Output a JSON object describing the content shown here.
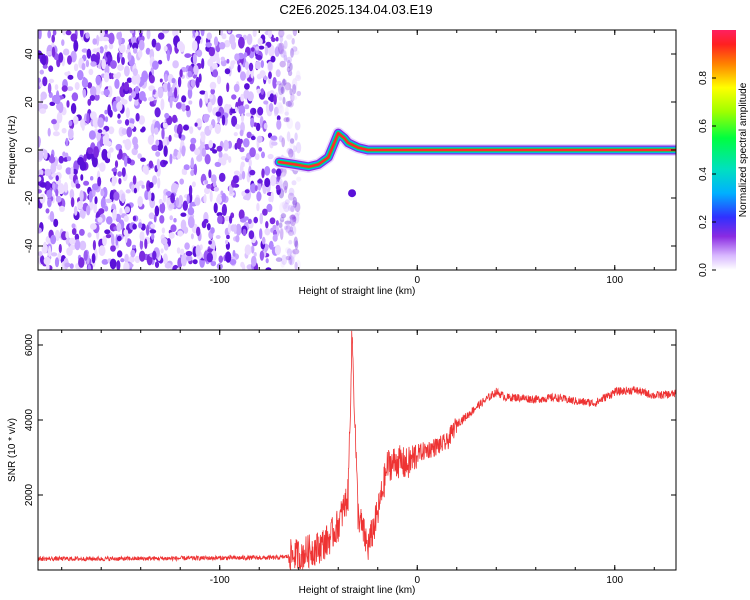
{
  "title": "C2E6.2025.134.04.03.E19",
  "chart_data": [
    {
      "type": "heatmap",
      "xlabel": "Height of straight line (km)",
      "ylabel": "Frequency (Hz)",
      "xlim": [
        -192,
        131
      ],
      "ylim": [
        -50,
        50
      ],
      "x_ticks": [
        -100,
        0,
        100
      ],
      "x_tick_labels": [
        "-100",
        "0",
        "100"
      ],
      "y_ticks": [
        -40,
        -20,
        0,
        20,
        40
      ],
      "y_tick_labels": [
        "-40",
        "-20",
        "0",
        "20",
        "40"
      ],
      "grid": false,
      "noise_region_x": [
        -192,
        -70
      ],
      "signal_trace": {
        "x": [
          -70,
          -62,
          -55,
          -50,
          -45,
          -42,
          -40,
          -37,
          -35,
          -30,
          -25,
          -20,
          -15,
          -10,
          -5,
          0,
          5,
          10,
          131
        ],
        "freq": [
          -5,
          -6,
          -7,
          -6,
          -3,
          3,
          7,
          5,
          3,
          1,
          0,
          0,
          0,
          0,
          0,
          0,
          0,
          0,
          0
        ]
      },
      "colorbar": {
        "label": "Normalized spectral amplitude",
        "ticks": [
          0.0,
          0.2,
          0.4,
          0.6,
          0.8
        ],
        "tick_labels": [
          "0.0",
          "0.2",
          "0.4",
          "0.6",
          "0.8"
        ],
        "range": [
          0,
          1
        ]
      }
    },
    {
      "type": "line",
      "xlabel": "Height of straight line (km)",
      "ylabel": "SNR (10 * v/v)",
      "xlim": [
        -192,
        131
      ],
      "ylim": [
        0,
        6400
      ],
      "x_ticks": [
        -100,
        0,
        100
      ],
      "x_tick_labels": [
        "-100",
        "0",
        "100"
      ],
      "y_ticks": [
        2000,
        4000,
        6000
      ],
      "y_tick_labels": [
        "2000",
        "4000",
        "6000"
      ],
      "grid": false,
      "series": [
        {
          "color": "#ee3333",
          "x": [
            -192,
            -150,
            -100,
            -70,
            -60,
            -50,
            -45,
            -40,
            -35,
            -33,
            -30,
            -25,
            -20,
            -15,
            -10,
            -5,
            0,
            5,
            10,
            15,
            20,
            25,
            30,
            35,
            40,
            45,
            50,
            60,
            70,
            80,
            90,
            95,
            100,
            110,
            120,
            131
          ],
          "y": [
            300,
            300,
            320,
            330,
            400,
            600,
            800,
            1200,
            2000,
            6300,
            1500,
            600,
            1500,
            2800,
            2900,
            2800,
            3100,
            3200,
            3300,
            3400,
            3900,
            4100,
            4350,
            4550,
            4750,
            4600,
            4600,
            4550,
            4600,
            4500,
            4450,
            4600,
            4750,
            4800,
            4650,
            4700
          ]
        }
      ]
    }
  ],
  "colors": {
    "trace": "#ee3333",
    "noise": "#6a1fe0",
    "background": "#ffffff"
  }
}
